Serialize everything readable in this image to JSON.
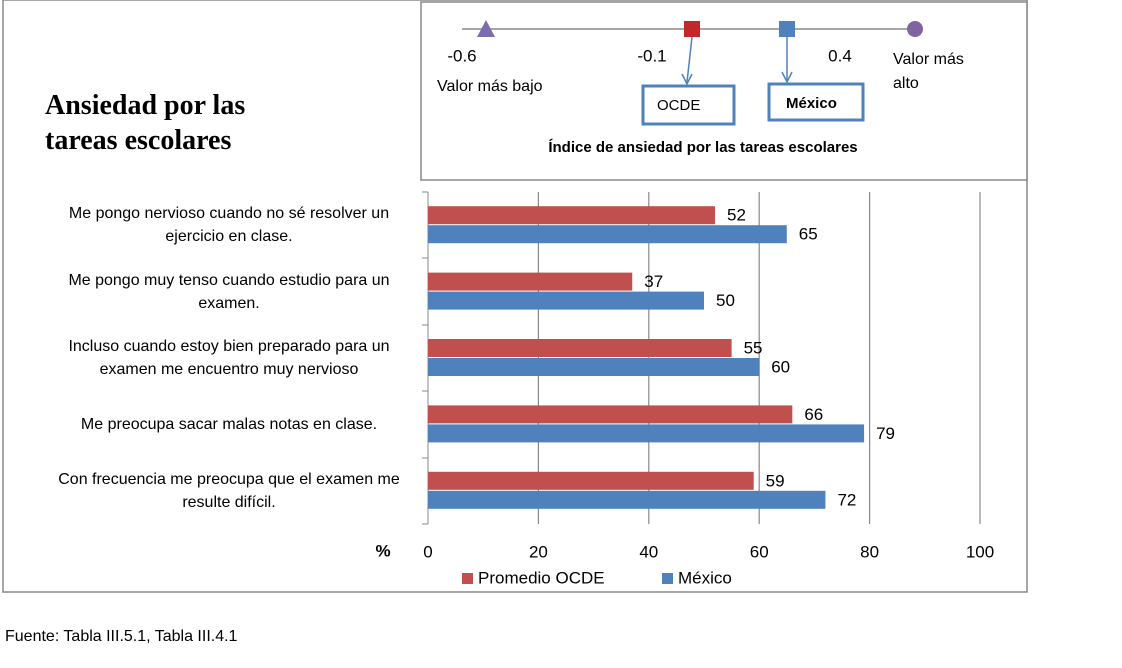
{
  "title": "Ansiedad por las tareas escolares",
  "index_scale": {
    "title": "Índice de ansiedad por las tareas escolares",
    "labels": [
      "-0.6",
      "-0.1",
      "0.4"
    ],
    "lowest_label": "Valor más bajo",
    "highest_label": "Valor más alto",
    "ocde_label": "OCDE",
    "mexico_label": "México"
  },
  "chart_data": {
    "type": "bar",
    "orientation": "horizontal",
    "categories": [
      "Me pongo nervioso cuando no sé resolver un ejercicio en clase.",
      "Me pongo muy tenso cuando estudio para un examen.",
      "Incluso cuando estoy bien preparado para un examen me encuentro muy nervioso",
      "Me preocupa sacar malas notas en clase.",
      "Con frecuencia me preocupa que el examen me resulte difícil."
    ],
    "series": [
      {
        "name": "Promedio OCDE",
        "color": "#c0504d",
        "values": [
          52,
          37,
          55,
          66,
          59
        ]
      },
      {
        "name": "México",
        "color": "#4f81bd",
        "values": [
          65,
          50,
          60,
          79,
          72
        ]
      }
    ],
    "xlabel": "%",
    "xlim": [
      0,
      100
    ],
    "xticks": [
      0,
      20,
      40,
      60,
      80,
      100
    ],
    "grid": true,
    "legend": "bottom"
  },
  "source": "Fuente: Tabla III.5.1, Tabla III.4.1"
}
